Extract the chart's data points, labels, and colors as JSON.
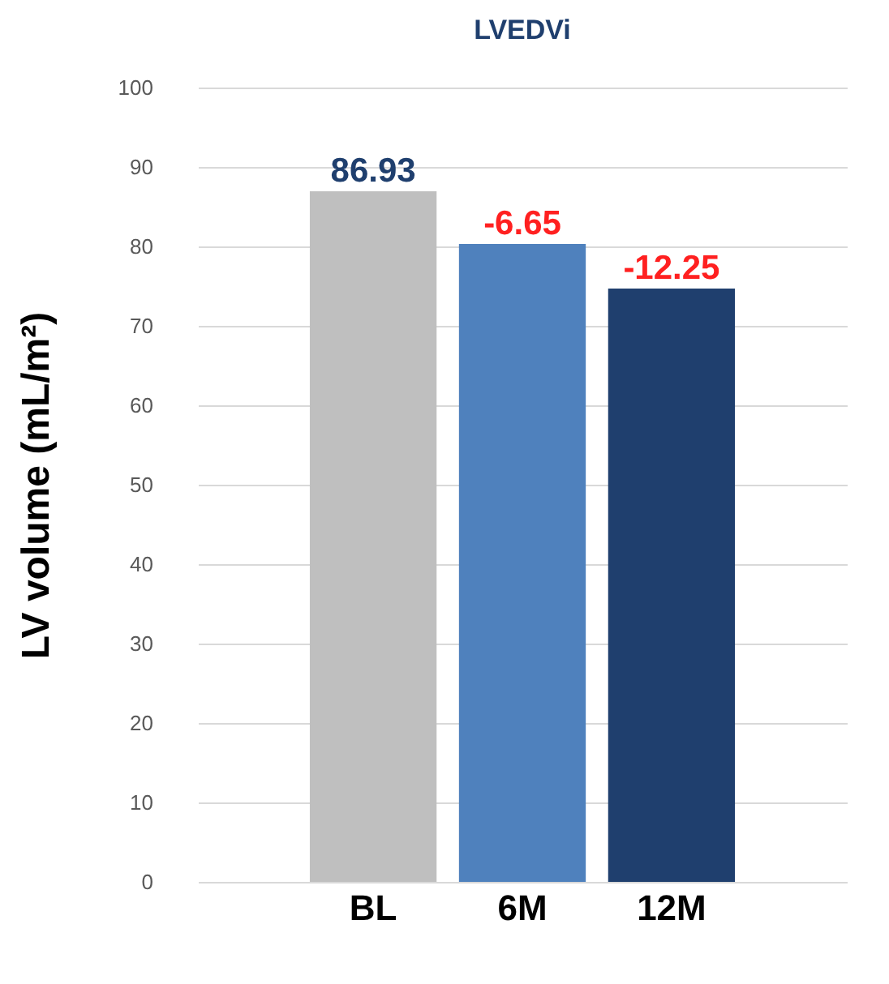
{
  "chart_data": {
    "type": "bar",
    "title": "LVEDVi",
    "ylabel": "LV volume (mL/m²)",
    "categories": [
      "BL",
      "6M",
      "12M"
    ],
    "values": [
      86.93,
      80.3,
      74.7
    ],
    "colors": [
      "#bfbfbf",
      "#4f81bd",
      "#1f3f6e"
    ],
    "value_labels": [
      "86.93",
      null,
      null
    ],
    "annotations": [
      {
        "text": "-6.65",
        "x": "6M",
        "y": 80.3
      },
      {
        "text": "-12.25",
        "x": "12M",
        "y": 74.7
      }
    ],
    "ylim": [
      0,
      100
    ],
    "yticks": [
      0,
      10,
      20,
      30,
      40,
      50,
      60,
      70,
      80,
      90,
      100
    ],
    "grid": "y"
  }
}
